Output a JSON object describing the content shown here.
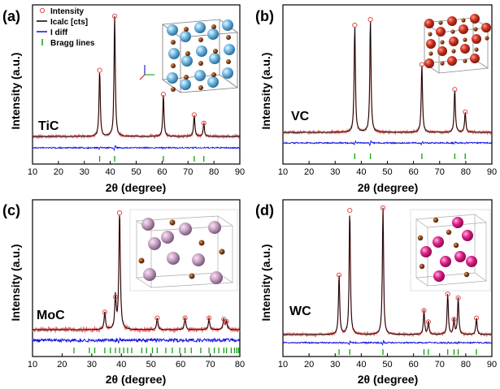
{
  "chart_data": [
    {
      "type": "line",
      "panel_label": "(a)",
      "material": "TiC",
      "xlabel": "2θ (degree)",
      "ylabel": "Intensity (a.u.)",
      "xlim": [
        10,
        90
      ],
      "xticks": [
        "10",
        "20",
        "30",
        "40",
        "50",
        "60",
        "70",
        "80",
        "90"
      ],
      "grid": false,
      "legend": {
        "placement": "top-left",
        "entries": [
          {
            "name": "Intensity",
            "marker": "circle",
            "color": "#e05050"
          },
          {
            "name": "Icalc [cts]",
            "marker": "line",
            "color": "#000000"
          },
          {
            "name": "I diff",
            "marker": "line",
            "color": "#1010e0"
          },
          {
            "name": "Bragg lines",
            "marker": "tick",
            "color": "#10a010"
          }
        ]
      },
      "peaks": [
        {
          "x": 35.9,
          "y": 0.55
        },
        {
          "x": 41.7,
          "y": 1.0
        },
        {
          "x": 60.5,
          "y": 0.35
        },
        {
          "x": 72.4,
          "y": 0.18
        },
        {
          "x": 76.1,
          "y": 0.11
        }
      ],
      "bragg_lines": [
        35.9,
        41.7,
        60.5,
        72.4,
        76.1
      ]
    },
    {
      "type": "line",
      "panel_label": "(b)",
      "material": "VC",
      "xlabel": "2θ (degree)",
      "ylabel": "Intensity (a.u.)",
      "xlim": [
        10,
        90
      ],
      "xticks": [
        "10",
        "20",
        "30",
        "40",
        "50",
        "60",
        "70",
        "80",
        "90"
      ],
      "grid": false,
      "peaks": [
        {
          "x": 37.5,
          "y": 0.95
        },
        {
          "x": 43.5,
          "y": 1.0
        },
        {
          "x": 63.2,
          "y": 0.6
        },
        {
          "x": 75.8,
          "y": 0.38
        },
        {
          "x": 79.8,
          "y": 0.18
        }
      ],
      "bragg_lines": [
        37.5,
        43.5,
        63.2,
        75.8,
        79.8
      ]
    },
    {
      "type": "line",
      "panel_label": "(c)",
      "material": "MoC",
      "xlabel": "2θ (degree)",
      "ylabel": "Intensity (a.u.)",
      "xlim": [
        10,
        80
      ],
      "xticks": [
        "10",
        "20",
        "30",
        "40",
        "50",
        "60",
        "70",
        "80"
      ],
      "grid": false,
      "peaks": [
        {
          "x": 34.4,
          "y": 0.15
        },
        {
          "x": 38.0,
          "y": 0.28
        },
        {
          "x": 39.4,
          "y": 1.0
        },
        {
          "x": 52.1,
          "y": 0.1
        },
        {
          "x": 61.5,
          "y": 0.1
        },
        {
          "x": 69.6,
          "y": 0.1
        },
        {
          "x": 74.6,
          "y": 0.09
        },
        {
          "x": 75.5,
          "y": 0.07
        }
      ],
      "bragg_lines": [
        24.0,
        29.2,
        31.0,
        34.4,
        36.3,
        38.0,
        39.4,
        40.8,
        42.1,
        43.5,
        46.9,
        48.5,
        50.5,
        52.1,
        55.0,
        57.2,
        59.7,
        61.5,
        63.6,
        66.8,
        69.6,
        71.4,
        72.9,
        74.6,
        75.5,
        77.1,
        78.2,
        79.0,
        79.6
      ]
    },
    {
      "type": "line",
      "panel_label": "(d)",
      "material": "WC",
      "xlabel": "2θ (degree)",
      "ylabel": "Intensity (a.u.)",
      "xlim": [
        10,
        90
      ],
      "xticks": [
        "10",
        "20",
        "30",
        "40",
        "50",
        "60",
        "70",
        "80",
        "90"
      ],
      "grid": false,
      "peaks": [
        {
          "x": 31.5,
          "y": 0.47
        },
        {
          "x": 35.6,
          "y": 0.98
        },
        {
          "x": 48.3,
          "y": 1.0
        },
        {
          "x": 64.0,
          "y": 0.19
        },
        {
          "x": 65.7,
          "y": 0.1
        },
        {
          "x": 73.1,
          "y": 0.32
        },
        {
          "x": 75.5,
          "y": 0.12
        },
        {
          "x": 77.1,
          "y": 0.29
        },
        {
          "x": 84.1,
          "y": 0.13
        }
      ],
      "bragg_lines": [
        31.5,
        35.6,
        48.3,
        64.0,
        65.7,
        73.1,
        75.5,
        77.1,
        84.1
      ]
    }
  ],
  "colors": {
    "observed": "#e05050",
    "calc": "#000000",
    "diff": "#1010e0",
    "bragg": "#10a010",
    "c_atom": "#8b4513",
    "Ti": "#6fb7e0",
    "V": "#cc3322",
    "Mo": "#c9a0c4",
    "W": "#e0208a"
  }
}
